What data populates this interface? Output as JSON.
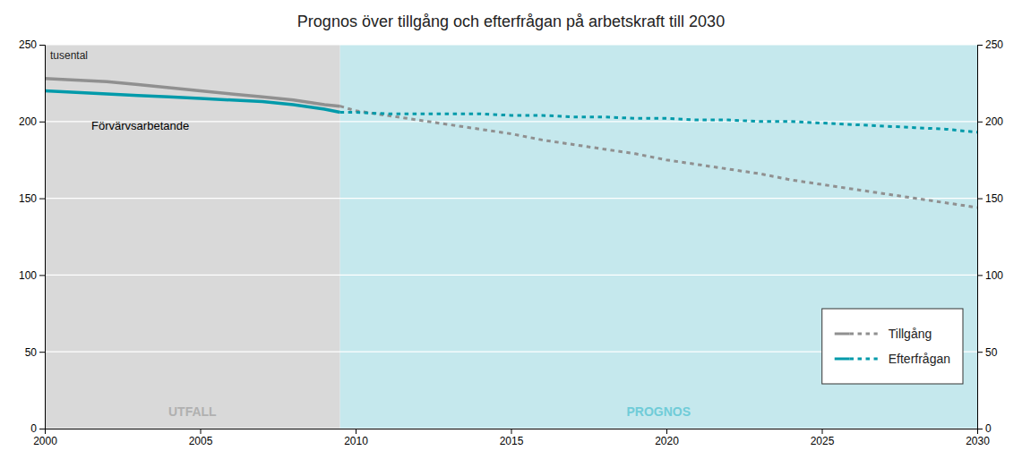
{
  "chart_data": {
    "type": "line",
    "title": "Prognos över tillgång och efterfrågan på arbetskraft till 2030",
    "y_label": "tusental",
    "annotation": "Förvärvsarbetande",
    "xlim": [
      2000,
      2030
    ],
    "xticks": [
      2000,
      2005,
      2010,
      2015,
      2020,
      2025,
      2030
    ],
    "ylim": [
      0,
      250
    ],
    "yticks": [
      0,
      50,
      100,
      150,
      200,
      250
    ],
    "y2lim": [
      0,
      250
    ],
    "y2ticks": [
      0,
      50,
      100,
      150,
      200,
      250
    ],
    "grid": true,
    "legend": "lower right",
    "regions": [
      {
        "label": "UTFALL",
        "from": 2000,
        "to": 2009.5,
        "color": "#d9d9d9",
        "label_color": "#b0b0b0"
      },
      {
        "label": "PROGNOS",
        "from": 2009.5,
        "to": 2030,
        "color": "#c5e8ed",
        "label_color": "#70ccd8"
      }
    ],
    "series": [
      {
        "name": "Tillgång",
        "color": "#909090",
        "line_style": "solid",
        "x": [
          2000,
          2001,
          2002,
          2003,
          2004,
          2005,
          2006,
          2007,
          2008,
          2009,
          2009.5
        ],
        "values": [
          228,
          227,
          226,
          224,
          222,
          220,
          218,
          216,
          214,
          211,
          210
        ]
      },
      {
        "name": "Tillgång",
        "color": "#909090",
        "line_style": "dotted",
        "x": [
          2009.5,
          2010,
          2011,
          2012,
          2013,
          2014,
          2015,
          2016,
          2017,
          2018,
          2019,
          2020,
          2021,
          2022,
          2023,
          2024,
          2025,
          2026,
          2027,
          2028,
          2029,
          2030
        ],
        "values": [
          210,
          207,
          204,
          201,
          198,
          195,
          192,
          188,
          185,
          182,
          179,
          175,
          172,
          169,
          166,
          162,
          159,
          156,
          153,
          150,
          147,
          144
        ]
      },
      {
        "name": "Efterfrågan",
        "color": "#009aaa",
        "line_style": "solid",
        "x": [
          2000,
          2001,
          2002,
          2003,
          2004,
          2005,
          2006,
          2007,
          2008,
          2009,
          2009.5
        ],
        "values": [
          220,
          219,
          218,
          217,
          216,
          215,
          214,
          213,
          211,
          208,
          206
        ]
      },
      {
        "name": "Efterfrågan",
        "color": "#009aaa",
        "line_style": "dotted",
        "x": [
          2009.5,
          2010,
          2011,
          2012,
          2013,
          2014,
          2015,
          2016,
          2017,
          2018,
          2019,
          2020,
          2021,
          2022,
          2023,
          2024,
          2025,
          2026,
          2027,
          2028,
          2029,
          2030
        ],
        "values": [
          206,
          206,
          205,
          205,
          205,
          205,
          204,
          204,
          203,
          203,
          202,
          202,
          201,
          201,
          200,
          200,
          199,
          198,
          197,
          196,
          195,
          193
        ]
      }
    ]
  }
}
